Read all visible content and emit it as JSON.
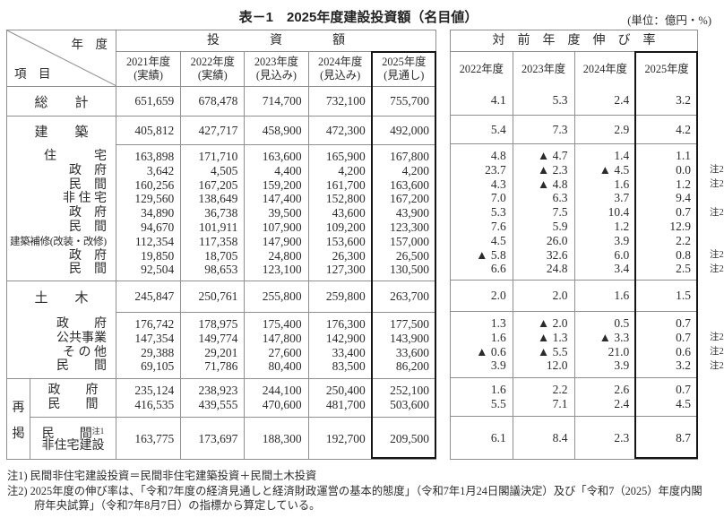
{
  "page": {
    "title": "表－1　2025年度建設投資額（名目値）",
    "unit": "(単位：億円・%)"
  },
  "note2_tag": "注2",
  "left_table": {
    "corner_top": "年　度",
    "corner_bottom": "項　目",
    "group_header": "投　　　　資　　　　額",
    "col_headers": [
      {
        "year": "2021年度",
        "kind": "(実績)"
      },
      {
        "year": "2022年度",
        "kind": "(実績)"
      },
      {
        "year": "2023年度",
        "kind": "(見込み)"
      },
      {
        "year": "2024年度",
        "kind": "(見込み)"
      },
      {
        "year": "2025年度",
        "kind": "(見通し)"
      }
    ]
  },
  "right_table": {
    "group_header": "対　前　年　度　伸　び　率",
    "col_headers": [
      "2022年度",
      "2023年度",
      "2024年度",
      "2025年度"
    ]
  },
  "body": [
    {
      "kind": "single",
      "sep": "full",
      "h": 33,
      "label": "総　　計",
      "v": [
        "651,659",
        "678,478",
        "714,700",
        "732,100",
        "755,700"
      ],
      "g": [
        "4.1",
        "5.3",
        "2.4",
        "3.2"
      ]
    },
    {
      "kind": "single",
      "sep": "data",
      "h": 32,
      "label": "建　　築",
      "v": [
        "405,812",
        "427,717",
        "458,900",
        "472,300",
        "492,000"
      ],
      "g": [
        "5.4",
        "7.3",
        "2.9",
        "4.2"
      ]
    },
    {
      "kind": "block",
      "sep": "full",
      "h": 152,
      "rows": [
        {
          "label": "住　　　宅",
          "lc": "r",
          "v": [
            "163,898",
            "171,710",
            "163,600",
            "165,900",
            "167,800"
          ],
          "g": [
            "4.8",
            "▲ 4.7",
            "1.4",
            "1.1"
          ],
          "n": false
        },
        {
          "label": "政　府",
          "lc": "r",
          "v": [
            "3,642",
            "4,505",
            "4,400",
            "4,200",
            "4,200"
          ],
          "g": [
            "23.7",
            "▲ 2.3",
            "▲ 4.5",
            "0.0"
          ],
          "n": true
        },
        {
          "label": "民　間",
          "lc": "r",
          "v": [
            "160,256",
            "167,205",
            "159,200",
            "161,700",
            "163,600"
          ],
          "g": [
            "4.3",
            "▲ 4.8",
            "1.6",
            "1.2"
          ],
          "n": true
        },
        {
          "label": "非 住 宅",
          "lc": "r",
          "v": [
            "129,560",
            "138,649",
            "147,400",
            "152,800",
            "167,200"
          ],
          "g": [
            "7.0",
            "6.3",
            "3.7",
            "9.4"
          ],
          "n": false
        },
        {
          "label": "政　府",
          "lc": "r",
          "v": [
            "34,890",
            "36,738",
            "39,500",
            "43,600",
            "43,900"
          ],
          "g": [
            "5.3",
            "7.5",
            "10.4",
            "0.7"
          ],
          "n": true
        },
        {
          "label": "民　間",
          "lc": "r",
          "v": [
            "94,670",
            "101,911",
            "107,900",
            "109,200",
            "123,300"
          ],
          "g": [
            "7.6",
            "5.9",
            "1.2",
            "12.9"
          ],
          "n": false
        },
        {
          "label": "建築補修(改装・改修)",
          "lc": "l small",
          "v": [
            "112,354",
            "117,358",
            "147,900",
            "153,600",
            "157,000"
          ],
          "g": [
            "4.5",
            "26.0",
            "3.9",
            "2.2"
          ],
          "n": false
        },
        {
          "label": "政　府",
          "lc": "r",
          "v": [
            "19,850",
            "18,705",
            "24,800",
            "26,300",
            "26,500"
          ],
          "g": [
            "▲ 5.8",
            "32.6",
            "6.0",
            "0.8"
          ],
          "n": true
        },
        {
          "label": "民　間",
          "lc": "r",
          "v": [
            "92,504",
            "98,653",
            "123,100",
            "127,300",
            "130,500"
          ],
          "g": [
            "6.6",
            "24.8",
            "3.4",
            "2.5"
          ],
          "n": true
        }
      ]
    },
    {
      "kind": "single",
      "sep": "data",
      "h": 35,
      "label": "土　　木",
      "v": [
        "245,847",
        "250,761",
        "255,800",
        "259,800",
        "263,700"
      ],
      "g": [
        "2.0",
        "2.0",
        "1.6",
        "1.5"
      ]
    },
    {
      "kind": "block",
      "sep": "full",
      "h": 74,
      "rows": [
        {
          "label": "政　　府",
          "lc": "r",
          "v": [
            "176,742",
            "178,975",
            "175,400",
            "176,300",
            "177,500"
          ],
          "g": [
            "1.3",
            "▲ 2.0",
            "0.5",
            "0.7"
          ],
          "n": false
        },
        {
          "label": "公共事業",
          "lc": "r",
          "v": [
            "147,354",
            "149,774",
            "147,800",
            "142,900",
            "143,900"
          ],
          "g": [
            "1.6",
            "▲ 1.3",
            "▲ 3.3",
            "0.7"
          ],
          "n": true
        },
        {
          "label": "そ の 他",
          "lc": "r",
          "v": [
            "29,388",
            "29,201",
            "27,600",
            "33,400",
            "33,600"
          ],
          "g": [
            "▲ 0.6",
            "▲ 5.5",
            "21.0",
            "0.6"
          ],
          "n": true
        },
        {
          "label": "民　　間",
          "lc": "r",
          "v": [
            "69,105",
            "71,786",
            "80,400",
            "83,500",
            "86,200"
          ],
          "g": [
            "3.9",
            "12.0",
            "3.9",
            "3.2"
          ],
          "n": true
        }
      ]
    },
    {
      "kind": "rehash",
      "h1": 43,
      "h2": 47,
      "side_chars": [
        "再",
        "掲"
      ],
      "rows": [
        {
          "label": "政　　府",
          "v": [
            "235,124",
            "238,923",
            "244,100",
            "250,400",
            "252,100"
          ],
          "g": [
            "1.6",
            "2.2",
            "2.6",
            "0.7"
          ]
        },
        {
          "label": "民　　間",
          "v": [
            "416,535",
            "439,555",
            "470,600",
            "481,700",
            "503,600"
          ],
          "g": [
            "5.5",
            "7.1",
            "2.4",
            "4.5"
          ]
        }
      ],
      "row2": {
        "label1": "民　　間",
        "sup": "注1",
        "label2": "非住宅建設",
        "v": [
          "163,775",
          "173,697",
          "188,300",
          "192,700",
          "209,500"
        ],
        "g": [
          "6.1",
          "8.4",
          "2.3",
          "8.7"
        ]
      }
    }
  ],
  "notes": [
    "注1) 民間非住宅建設投資＝民間非住宅建築投資＋民間土木投資",
    "注2) 2025年度の伸び率は、「令和7年度の経済見通しと経済財政運営の基本的態度」（令和7年1月24日閣議決定）及び「令和7（2025）年度内閣府年央試算」（令和7年8月7日）の指標から算定している。"
  ]
}
